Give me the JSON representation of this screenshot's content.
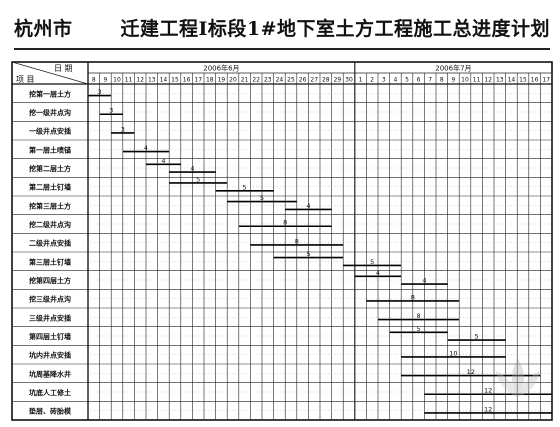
{
  "title_part1": "杭州市",
  "title_part2": "迁建工程Ⅰ标段1#地下室土方工程施工总进度计划",
  "header": {
    "date_label": "日 期",
    "item_label": "项 目",
    "month1": "2006年6月",
    "month2": "2006年7月"
  },
  "days": [
    "8",
    "9",
    "10",
    "11",
    "12",
    "13",
    "14",
    "15",
    "16",
    "17",
    "18",
    "19",
    "20",
    "21",
    "22",
    "23",
    "24",
    "25",
    "26",
    "27",
    "28",
    "29",
    "30",
    "1",
    "2",
    "3",
    "4",
    "5",
    "6",
    "7",
    "8",
    "9",
    "10",
    "11",
    "12",
    "13",
    "14",
    "15",
    "16",
    "17"
  ],
  "tasks": [
    {
      "name": "挖第一层土方",
      "bars": [
        {
          "start": 0,
          "end": 2,
          "label": "3"
        }
      ]
    },
    {
      "name": "挖一级井点沟",
      "bars": [
        {
          "start": 1,
          "end": 3,
          "label": "3"
        }
      ]
    },
    {
      "name": "一级井点安插",
      "bars": [
        {
          "start": 2,
          "end": 4,
          "label": "3"
        }
      ]
    },
    {
      "name": "第一层土喷锚",
      "bars": [
        {
          "start": 3,
          "end": 7,
          "label": "4"
        }
      ]
    },
    {
      "name": "挖第二层土方",
      "bars": [
        {
          "start": 5,
          "end": 8,
          "label": "4"
        },
        {
          "start": 7,
          "end": 11,
          "label": "4"
        }
      ]
    },
    {
      "name": "第二层土钉墙",
      "bars": [
        {
          "start": 7,
          "end": 12,
          "label": "5"
        },
        {
          "start": 11,
          "end": 16,
          "label": "5"
        }
      ]
    },
    {
      "name": "挖第三层土方",
      "bars": [
        {
          "start": 12,
          "end": 18,
          "label": "5"
        },
        {
          "start": 17,
          "end": 21,
          "label": "4"
        }
      ]
    },
    {
      "name": "挖二级井点沟",
      "bars": [
        {
          "start": 13,
          "end": 21,
          "label": "8"
        }
      ]
    },
    {
      "name": "二级井点安插",
      "bars": [
        {
          "start": 14,
          "end": 22,
          "label": "8"
        }
      ]
    },
    {
      "name": "第三层土钉墙",
      "bars": [
        {
          "start": 16,
          "end": 22,
          "label": "5"
        },
        {
          "start": 22,
          "end": 27,
          "label": "5"
        }
      ]
    },
    {
      "name": "挖第四层土方",
      "bars": [
        {
          "start": 23,
          "end": 27,
          "label": "4"
        },
        {
          "start": 27,
          "end": 31,
          "label": "4"
        }
      ]
    },
    {
      "name": "挖三级井点沟",
      "bars": [
        {
          "start": 24,
          "end": 32,
          "label": "8"
        }
      ]
    },
    {
      "name": "三级井点安插",
      "bars": [
        {
          "start": 25,
          "end": 32,
          "label": "8"
        }
      ]
    },
    {
      "name": "第四层土钉墙",
      "bars": [
        {
          "start": 26,
          "end": 31,
          "label": "5"
        },
        {
          "start": 31,
          "end": 36,
          "label": "5"
        }
      ]
    },
    {
      "name": "坑内井点安插",
      "bars": [
        {
          "start": 27,
          "end": 36,
          "label": "10"
        }
      ]
    },
    {
      "name": "坑周基降水井",
      "bars": [
        {
          "start": 27,
          "end": 39,
          "label": "12"
        }
      ]
    },
    {
      "name": "坑底人工修土",
      "bars": [
        {
          "start": 29,
          "end": 40,
          "label": "12"
        }
      ]
    },
    {
      "name": "垫层、砖胎模",
      "bars": [
        {
          "start": 29,
          "end": 40,
          "label": "12"
        }
      ]
    }
  ],
  "watermark_icon": "lotus-watermark-icon"
}
